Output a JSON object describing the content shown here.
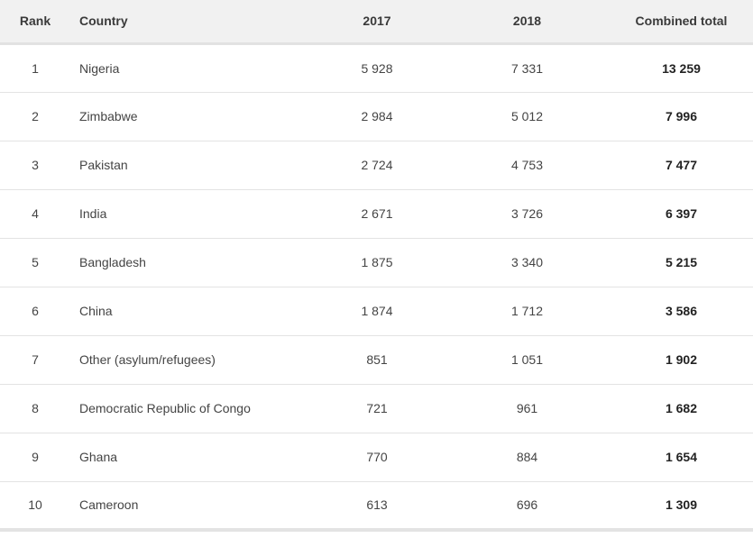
{
  "table": {
    "headers": {
      "rank": "Rank",
      "country": "Country",
      "y2017": "2017",
      "y2018": "2018",
      "total": "Combined total"
    },
    "rows": [
      {
        "rank": "1",
        "country": "Nigeria",
        "y2017": "5 928",
        "y2018": "7 331",
        "total": "13 259"
      },
      {
        "rank": "2",
        "country": "Zimbabwe",
        "y2017": "2 984",
        "y2018": "5 012",
        "total": "7 996"
      },
      {
        "rank": "3",
        "country": "Pakistan",
        "y2017": "2 724",
        "y2018": "4 753",
        "total": "7 477"
      },
      {
        "rank": "4",
        "country": "India",
        "y2017": "2 671",
        "y2018": "3 726",
        "total": "6 397"
      },
      {
        "rank": "5",
        "country": "Bangladesh",
        "y2017": "1 875",
        "y2018": "3 340",
        "total": "5 215"
      },
      {
        "rank": "6",
        "country": "China",
        "y2017": "1 874",
        "y2018": "1 712",
        "total": "3 586"
      },
      {
        "rank": "7",
        "country": "Other (asylum/refugees)",
        "y2017": "851",
        "y2018": "1 051",
        "total": "1 902"
      },
      {
        "rank": "8",
        "country": "Democratic Republic of Congo",
        "y2017": "721",
        "y2018": "961",
        "total": "1 682"
      },
      {
        "rank": "9",
        "country": "Ghana",
        "y2017": "770",
        "y2018": "884",
        "total": "1 654"
      },
      {
        "rank": "10",
        "country": "Cameroon",
        "y2017": "613",
        "y2018": "696",
        "total": "1 309"
      }
    ]
  }
}
